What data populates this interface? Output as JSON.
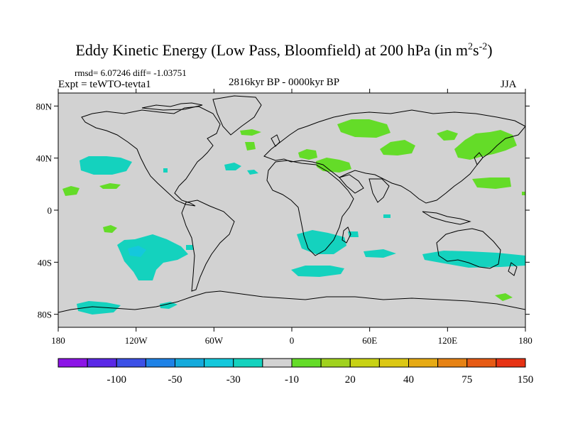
{
  "title": {
    "text": "Eddy Kinetic Energy (Low Pass, Bloomfield) at 200 hPa (in m",
    "sup1": "2",
    "mid": "s",
    "sup2": "-2",
    "end": ")"
  },
  "stats": "rmsd= 6.07246 diff= -1.03751",
  "experiment": "Expt = teWTO-tevta1",
  "period": "2816kyr BP - 0000kyr BP",
  "season": "JJA",
  "map": {
    "lon_range": [
      -180,
      180
    ],
    "lat_range": [
      -90,
      90
    ],
    "x_ticks": [
      {
        "value": -180,
        "label": "180"
      },
      {
        "value": -120,
        "label": "120W"
      },
      {
        "value": -60,
        "label": "60W"
      },
      {
        "value": 0,
        "label": "0"
      },
      {
        "value": 60,
        "label": "60E"
      },
      {
        "value": 120,
        "label": "120E"
      },
      {
        "value": 180,
        "label": "180"
      }
    ],
    "y_ticks": [
      {
        "value": 80,
        "label": "80N"
      },
      {
        "value": 40,
        "label": "40N"
      },
      {
        "value": 0,
        "label": "0"
      },
      {
        "value": -40,
        "label": "40S"
      },
      {
        "value": -80,
        "label": "80S"
      }
    ],
    "background_color": "#d2d2d2"
  },
  "colorbar": {
    "colors": [
      "#8c14e6",
      "#5a28e6",
      "#3c50e6",
      "#1e82e6",
      "#14aadc",
      "#14c8dc",
      "#14d2be",
      "#d2d2d2",
      "#64dc28",
      "#a0d21e",
      "#c8d214",
      "#dcc814",
      "#e6aa14",
      "#e68214",
      "#e65a14",
      "#e63214"
    ],
    "labels": [
      {
        "boundary": 2,
        "text": "-100"
      },
      {
        "boundary": 4,
        "text": "-50"
      },
      {
        "boundary": 6,
        "text": "-30"
      },
      {
        "boundary": 8,
        "text": "-10"
      },
      {
        "boundary": 10,
        "text": "20"
      },
      {
        "boundary": 12,
        "text": "40"
      },
      {
        "boundary": 14,
        "text": "75"
      },
      {
        "boundary": 16,
        "text": "150"
      }
    ]
  },
  "colors": {
    "negative_anomaly": "#14d2be",
    "negative_anomaly_strong": "#14c8dc",
    "positive_anomaly": "#64dc28"
  }
}
